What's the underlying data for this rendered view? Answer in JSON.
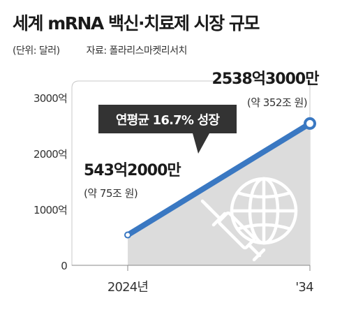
{
  "header": {
    "title": "세계 mRNA 백신·치료제 시장 규모",
    "unit": "(단위: 달러)",
    "source": "자료: 폴라리스마켓리서치"
  },
  "chart_data": {
    "type": "line",
    "x": [
      "2024년",
      "'34"
    ],
    "series": [
      {
        "values": [
          543.2,
          2538.3
        ]
      }
    ],
    "ylim": [
      0,
      3000
    ],
    "yticks": [
      0,
      1000,
      2000,
      3000
    ],
    "ytick_labels": [
      "0",
      "1000억",
      "2000억",
      "3000억"
    ],
    "grid": false,
    "colors": {
      "line": "#3a78c2",
      "area": "#dcdcdc"
    },
    "annotations": {
      "start_value": "543억2000만",
      "start_note": "(약 75조 원)",
      "end_value": "2538억3000만",
      "end_note": "(약 352조 원)",
      "cagr": "연평균 16.7% 성장"
    },
    "icons": [
      "globe-icon",
      "syringe-icon"
    ]
  }
}
